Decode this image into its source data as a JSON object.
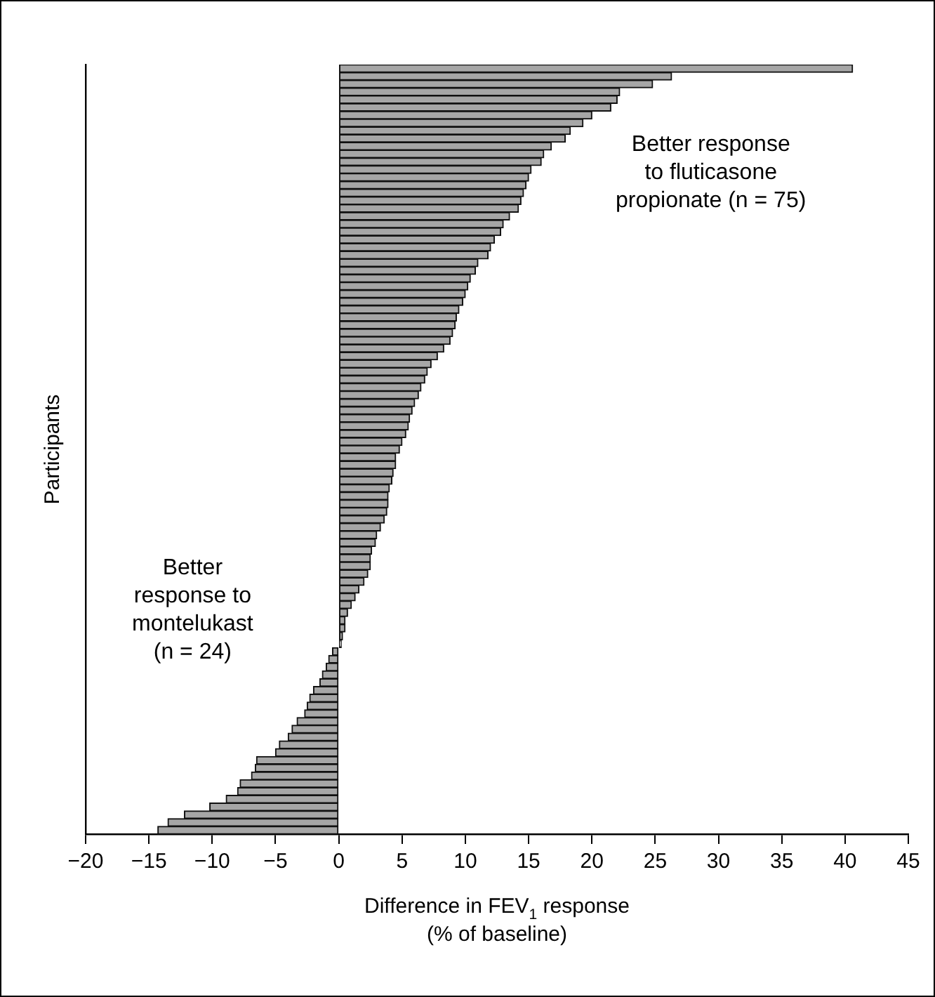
{
  "chart_data": {
    "type": "bar",
    "orientation": "horizontal",
    "xlabel": "Difference in FEV$_{1}$ response\n(% of baseline)",
    "ylabel": "Participants",
    "categories": [
      null,
      null,
      null,
      null,
      null,
      null,
      null,
      null,
      null,
      null,
      null,
      null,
      null,
      null,
      null,
      null,
      null,
      null,
      null,
      null,
      null,
      null,
      null,
      null,
      null,
      null,
      null,
      null,
      null,
      null,
      null,
      null,
      null,
      null,
      null,
      null,
      null,
      null,
      null,
      null,
      null,
      null,
      null,
      null,
      null,
      null,
      null,
      null,
      null,
      null,
      null,
      null,
      null,
      null,
      null,
      null,
      null,
      null,
      null,
      null,
      null,
      null,
      null,
      null,
      null,
      null,
      null,
      null,
      null,
      null,
      null,
      null,
      null,
      null,
      null,
      null,
      null,
      null,
      null,
      null,
      null,
      null,
      null,
      null,
      null,
      null,
      null,
      null,
      null,
      null,
      null,
      null,
      null,
      null,
      null,
      null,
      null,
      null,
      null
    ],
    "values": [
      40.6,
      26.3,
      24.8,
      22.2,
      22.0,
      21.5,
      20.0,
      19.3,
      18.3,
      17.9,
      16.8,
      16.2,
      16.0,
      15.2,
      15.0,
      14.8,
      14.6,
      14.4,
      14.2,
      13.5,
      13.0,
      12.8,
      12.3,
      12.0,
      11.8,
      11.0,
      10.8,
      10.4,
      10.2,
      10.0,
      9.8,
      9.5,
      9.3,
      9.2,
      9.0,
      8.8,
      8.3,
      7.8,
      7.3,
      7.0,
      6.8,
      6.5,
      6.3,
      6.0,
      5.8,
      5.6,
      5.5,
      5.3,
      5.0,
      4.8,
      4.5,
      4.5,
      4.3,
      4.2,
      4.0,
      3.9,
      3.9,
      3.8,
      3.6,
      3.3,
      3.0,
      2.9,
      2.6,
      2.5,
      2.5,
      2.3,
      2.0,
      1.6,
      1.3,
      1.0,
      0.7,
      0.5,
      0.5,
      0.3,
      0.2,
      -0.5,
      -0.8,
      -1.0,
      -1.3,
      -1.5,
      -2.0,
      -2.3,
      -2.5,
      -2.7,
      -3.3,
      -3.7,
      -4.0,
      -4.7,
      -5.0,
      -6.5,
      -6.6,
      -6.9,
      -7.8,
      -8.0,
      -8.9,
      -10.2,
      -12.2,
      -13.5,
      -14.3
    ],
    "color": "#a6a6a6",
    "xlim": [
      -20,
      45
    ],
    "xticks": [
      -20,
      -15,
      -10,
      -5,
      0,
      5,
      10,
      15,
      20,
      25,
      30,
      35,
      40,
      45
    ],
    "grid": false,
    "legend": false,
    "tick_labels": "x",
    "annotations": [
      "Better response\nto fluticasone\npropionate (n = 75)",
      "Better\nresponse to\nmontelukast\n(n = 24)"
    ]
  }
}
